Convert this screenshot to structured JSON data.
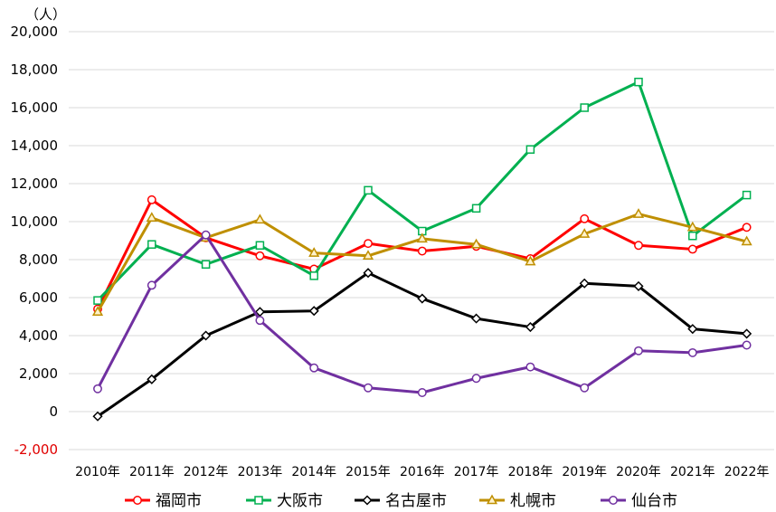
{
  "chart_data": {
    "type": "line",
    "unit_label": "（人）",
    "categories": [
      "2010年",
      "2011年",
      "2012年",
      "2013年",
      "2014年",
      "2015年",
      "2016年",
      "2017年",
      "2018年",
      "2019年",
      "2020年",
      "2021年",
      "2022年"
    ],
    "ylim": [
      -2000,
      20000
    ],
    "yticks": [
      20000,
      18000,
      16000,
      14000,
      12000,
      10000,
      8000,
      6000,
      4000,
      2000,
      0,
      -2000
    ],
    "ytick_labels": [
      "20,000",
      "18,000",
      "16,000",
      "14,000",
      "12,000",
      "10,000",
      "8,000",
      "6,000",
      "4,000",
      "2,000",
      "0",
      "-2,000"
    ],
    "grid": "horizontal",
    "legend_position": "bottom",
    "series": [
      {
        "name": "福岡市",
        "color": "#ff0000",
        "marker": "circle",
        "values": [
          5400,
          11150,
          9150,
          8200,
          7500,
          8850,
          8450,
          8700,
          8050,
          10150,
          8750,
          8550,
          9700
        ]
      },
      {
        "name": "大阪市",
        "color": "#00b050",
        "marker": "square",
        "values": [
          5850,
          8800,
          7750,
          8750,
          7150,
          11650,
          9500,
          10700,
          13800,
          16000,
          17350,
          9250,
          11400
        ]
      },
      {
        "name": "名古屋市",
        "color": "#000000",
        "marker": "diamond",
        "values": [
          -250,
          1700,
          4000,
          5250,
          5300,
          7300,
          5950,
          4900,
          4450,
          6750,
          6600,
          4350,
          4100
        ]
      },
      {
        "name": "札幌市",
        "color": "#bf8f00",
        "marker": "triangle",
        "values": [
          5250,
          10200,
          9150,
          10100,
          8350,
          8200,
          9100,
          8800,
          7900,
          9350,
          10400,
          9700,
          8950
        ]
      },
      {
        "name": "仙台市",
        "color": "#7030a0",
        "marker": "circle",
        "values": [
          1200,
          6650,
          9300,
          4800,
          2300,
          1250,
          1000,
          1750,
          2350,
          1250,
          3200,
          3100,
          3500
        ]
      }
    ]
  }
}
